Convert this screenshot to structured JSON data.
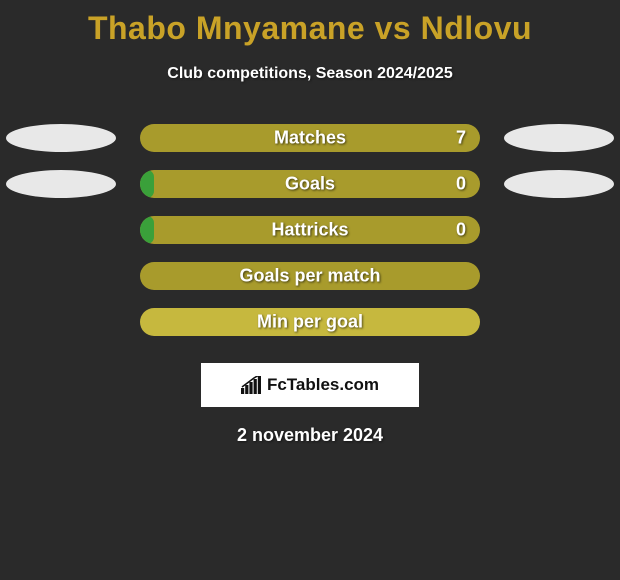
{
  "title": "Thabo Mnyamane vs Ndlovu",
  "subtitle": "Club competitions, Season 2024/2025",
  "brand": "FcTables.com",
  "date": "2 november 2024",
  "colors": {
    "background": "#2a2a2a",
    "title": "#c9a227",
    "text": "#ffffff",
    "ellipse_light": "#e8e8e8",
    "ellipse_gray": "#bdbdbd",
    "bar_olive": "#a89a2a",
    "bar_light_olive": "#c9b93a",
    "bar_green": "#3aa03a"
  },
  "rows": [
    {
      "label": "Matches",
      "value_right": "7",
      "left_ellipse": "#e8e8e8",
      "right_ellipse": "#e8e8e8",
      "bg_color": "#a89b2c",
      "fill_color": null,
      "fill_side": null,
      "fill_pct": 0
    },
    {
      "label": "Goals",
      "value_right": "0",
      "left_ellipse": "#e8e8e8",
      "right_ellipse": "#e8e8e8",
      "bg_color": "#a89b2c",
      "fill_color": "#3aa03a",
      "fill_side": "left",
      "fill_pct": 4
    },
    {
      "label": "Hattricks",
      "value_right": "0",
      "left_ellipse": null,
      "right_ellipse": null,
      "bg_color": "#a89b2c",
      "fill_color": "#3aa03a",
      "fill_side": "left",
      "fill_pct": 4
    },
    {
      "label": "Goals per match",
      "value_right": "",
      "left_ellipse": null,
      "right_ellipse": null,
      "bg_color": "#a89b2c",
      "fill_color": null,
      "fill_side": null,
      "fill_pct": 0
    },
    {
      "label": "Min per goal",
      "value_right": "",
      "left_ellipse": null,
      "right_ellipse": null,
      "bg_color": "#c6b83e",
      "fill_color": null,
      "fill_side": null,
      "fill_pct": 0
    }
  ]
}
